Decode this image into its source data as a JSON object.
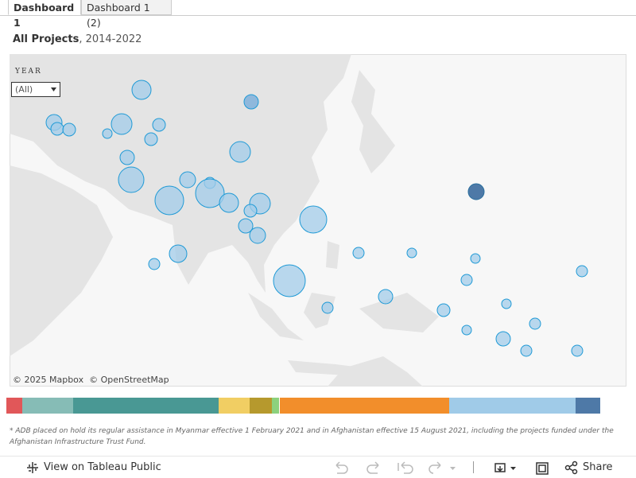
{
  "tabs": [
    "Dashboard 1",
    "Dashboard 1 (2)"
  ],
  "title": {
    "bold": "All Projects",
    "rest": ", 2014-2022"
  },
  "filter": {
    "label": "YEAR",
    "value": "(All)"
  },
  "map": {
    "attribution": [
      "© 2025 Mapbox",
      "© OpenStreetMap"
    ]
  },
  "footnote": "* ADB placed on hold its regular assistance in Myanmar effective 1 February 2021 and in Afghanistan effective 15 August 2021, including the projects funded under the Afghanistan Infrastructure Trust Fund.",
  "toolbar": {
    "view": "View on Tableau Public",
    "share": "Share"
  }
}
